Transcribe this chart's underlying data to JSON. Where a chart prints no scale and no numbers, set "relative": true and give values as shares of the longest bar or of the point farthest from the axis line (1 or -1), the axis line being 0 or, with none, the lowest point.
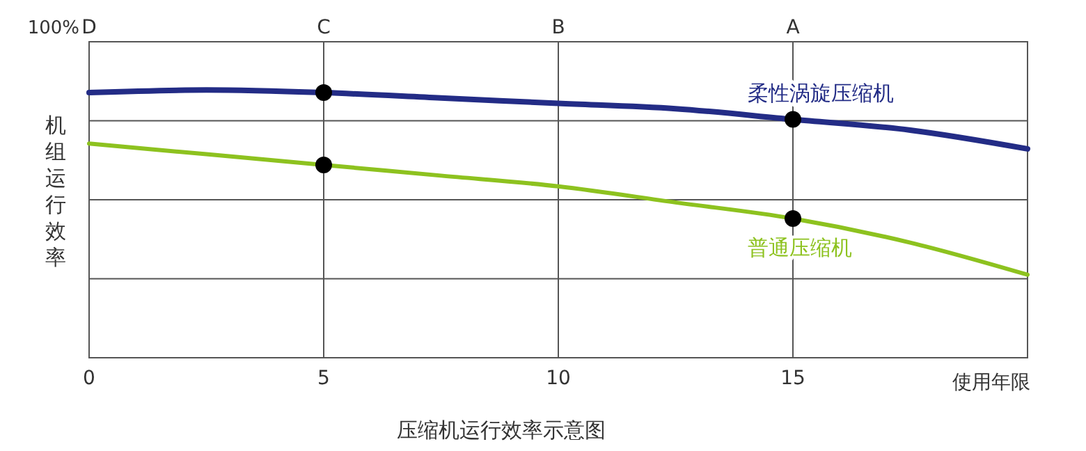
{
  "chart_data": {
    "type": "line",
    "title": "压缩机运行效率示意图",
    "xlabel": "使用年限",
    "ylabel": "机组运行效率",
    "annotations": [
      "100%",
      "D",
      "C",
      "B",
      "A"
    ],
    "relative": true,
    "x": [
      0,
      2.5,
      5,
      7.5,
      10,
      12.5,
      15,
      17.5,
      20
    ],
    "xlim": [
      0,
      20
    ],
    "xticks": [
      0,
      5,
      10,
      15
    ],
    "grid": true,
    "marker": "none",
    "line_style": "solid",
    "series": [
      {
        "name": "柔性涡旋压缩机",
        "color": "#232c86",
        "values": [
          0.99,
          1,
          0.99,
          0.97,
          0.95,
          0.93,
          0.89,
          0.85,
          0.78
        ]
      },
      {
        "name": "普通压缩机",
        "color": "#8dc21f",
        "values": [
          0.8,
          0.76,
          0.72,
          0.68,
          0.64,
          0.58,
          0.52,
          0.43,
          0.31
        ]
      },
      {
        "type": "scatter",
        "color": "#000000",
        "marker": "circle",
        "values": [
          null,
          null,
          0.99,
          null,
          null,
          null,
          0.89,
          null,
          null
        ]
      },
      {
        "type": "scatter",
        "color": "#000000",
        "marker": "circle",
        "values": [
          null,
          null,
          0.72,
          null,
          null,
          null,
          0.52,
          null,
          null
        ]
      }
    ]
  }
}
